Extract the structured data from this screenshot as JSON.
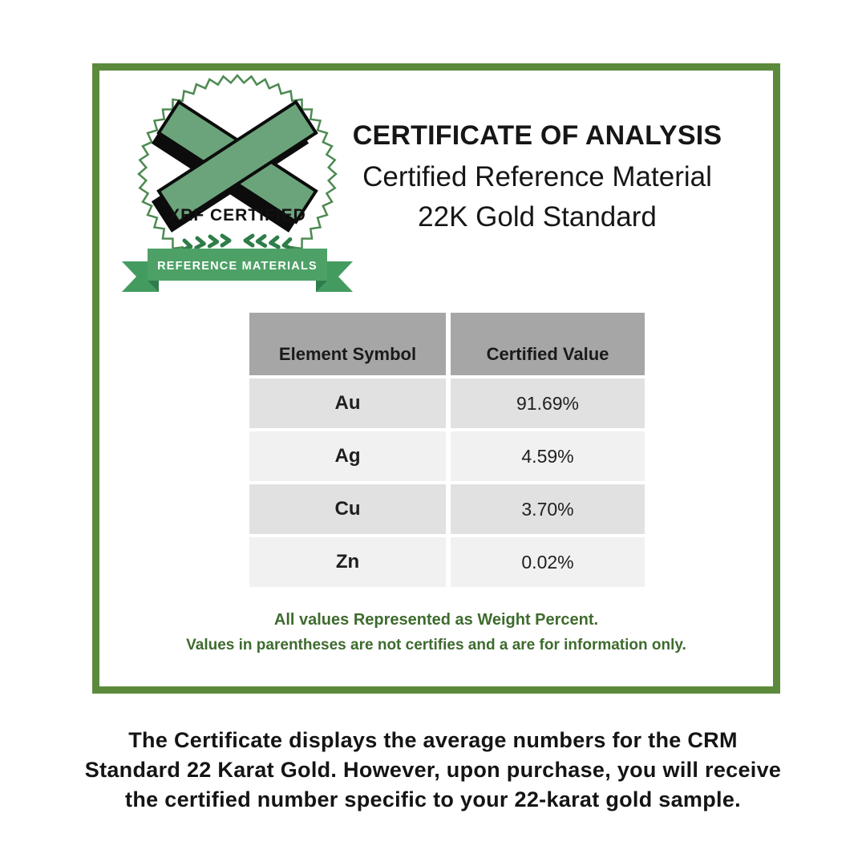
{
  "certificate": {
    "badge": {
      "seal_text": "XRF CERTIFIED",
      "ribbon_text": "REFERENCE MATERIALS"
    },
    "title": {
      "line1": "CERTIFICATE OF ANALYSIS",
      "line2": "Certified Reference Material",
      "line3": "22K Gold Standard"
    },
    "table": {
      "columns": [
        "Element Symbol",
        "Certified Value"
      ],
      "rows": [
        {
          "symbol": "Au",
          "value": "91.69%"
        },
        {
          "symbol": "Ag",
          "value": "4.59%"
        },
        {
          "symbol": "Cu",
          "value": "3.70%"
        },
        {
          "symbol": "Zn",
          "value": "0.02%"
        }
      ]
    },
    "footnote": {
      "line1": "All values Represented as Weight Percent.",
      "line2": "Values in parentheses are not certifies and a are for information only."
    }
  },
  "caption": {
    "lines": [
      "The Certificate displays the average numbers for the CRM",
      "Standard 22 Karat Gold. However, upon purchase, you will receive",
      "the certified number specific to your 22-karat gold sample."
    ]
  },
  "colors": {
    "frame_green": "#5b8a3c",
    "seal_outline_green": "#4d8a52",
    "logo_green": "#6ba47b",
    "ribbon_green": "#4da167",
    "ribbon_tail_green": "#439b60",
    "ribbon_fold_green": "#2f7b4c",
    "laurel_green": "#2e7d49",
    "footnote_green": "#3e6b2e",
    "table_header_gray": "#a6a6a6",
    "row_dark": "#e1e1e1",
    "row_light": "#f1f1f1"
  }
}
